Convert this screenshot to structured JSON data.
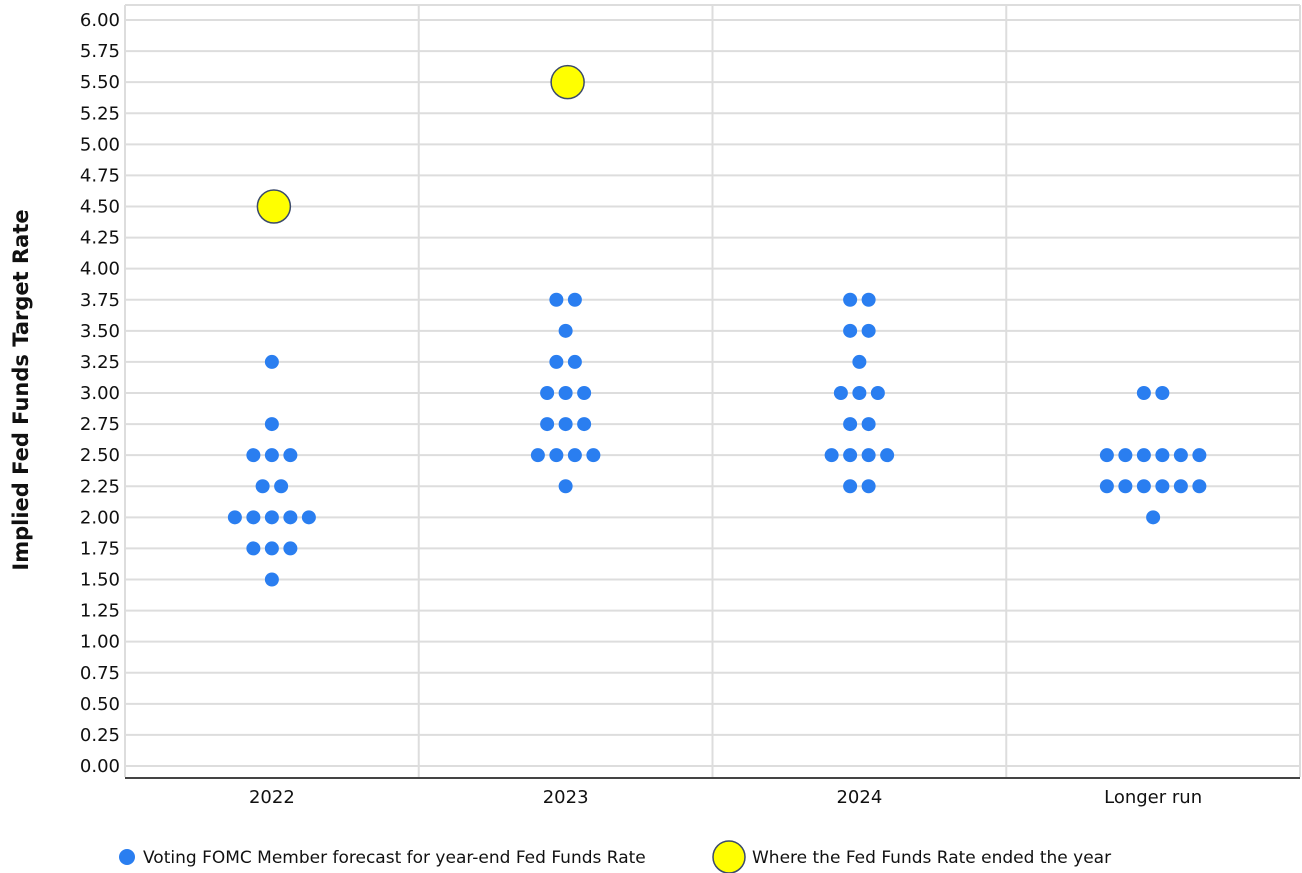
{
  "chart_data": {
    "type": "dot",
    "y_label": "Implied Fed Funds Target Rate",
    "categories": [
      "2022",
      "2023",
      "2024",
      "Longer run"
    ],
    "ylim": [
      0,
      6
    ],
    "yticks": [
      {
        "value": 0,
        "label": "0.00"
      },
      {
        "value": 0.25,
        "label": "0.25"
      },
      {
        "value": 0.5,
        "label": "0.50"
      },
      {
        "value": 0.75,
        "label": "0.75"
      },
      {
        "value": 1,
        "label": "1.00"
      },
      {
        "value": 1.25,
        "label": "1.25"
      },
      {
        "value": 1.5,
        "label": "1.50"
      },
      {
        "value": 1.75,
        "label": "1.75"
      },
      {
        "value": 2,
        "label": "2.00"
      },
      {
        "value": 2.25,
        "label": "2.25"
      },
      {
        "value": 2.5,
        "label": "2.50"
      },
      {
        "value": 2.75,
        "label": "2.75"
      },
      {
        "value": 3,
        "label": "3.00"
      },
      {
        "value": 3.25,
        "label": "3.25"
      },
      {
        "value": 3.5,
        "label": "3.50"
      },
      {
        "value": 3.75,
        "label": "3.75"
      },
      {
        "value": 4,
        "label": "4.00"
      },
      {
        "value": 4.25,
        "label": "4.25"
      },
      {
        "value": 4.5,
        "label": "4.50"
      },
      {
        "value": 4.75,
        "label": "4.75"
      },
      {
        "value": 5,
        "label": "5.00"
      },
      {
        "value": 5.25,
        "label": "5.25"
      },
      {
        "value": 5.5,
        "label": "5.50"
      },
      {
        "value": 5.75,
        "label": "5.75"
      },
      {
        "value": 6,
        "label": "6.00"
      }
    ],
    "grid": true,
    "legend": "bottom",
    "series": [
      {
        "name": "Voting FOMC Member forecast for year-end Fed Funds Rate",
        "color": "#2a7ef0",
        "values": [
          [
            3.25,
            2.75,
            2.5,
            2.5,
            2.5,
            2.25,
            2.25,
            2,
            2,
            2,
            2,
            2,
            1.75,
            1.75,
            1.75,
            1.5
          ],
          [
            3.75,
            3.75,
            3.5,
            3.25,
            3.25,
            3,
            3,
            3,
            2.75,
            2.75,
            2.75,
            2.5,
            2.5,
            2.5,
            2.5,
            2.25
          ],
          [
            3.75,
            3.75,
            3.5,
            3.5,
            3.25,
            3,
            3,
            3,
            2.75,
            2.75,
            2.5,
            2.5,
            2.5,
            2.5,
            2.25,
            2.25
          ],
          [
            3,
            3,
            2.5,
            2.5,
            2.5,
            2.5,
            2.5,
            2.5,
            2.25,
            2.25,
            2.25,
            2.25,
            2.25,
            2.25,
            2
          ]
        ]
      },
      {
        "name": "Where the Fed Funds Rate ended the year",
        "color": "#ffff00",
        "values": [
          4.5,
          5.5,
          null,
          null
        ]
      }
    ]
  }
}
